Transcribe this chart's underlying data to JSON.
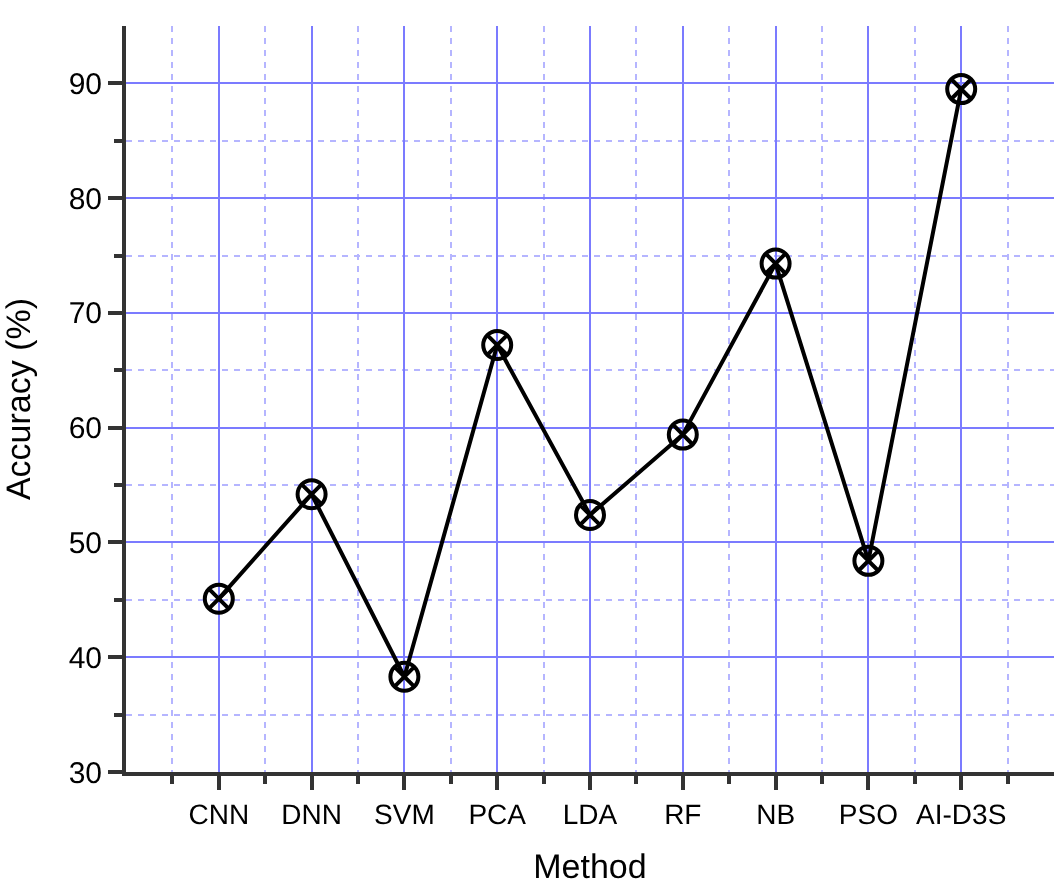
{
  "chart_data": {
    "type": "line",
    "xlabel": "Method",
    "ylabel": "Accuracy (%)",
    "categories": [
      "CNN",
      "DNN",
      "SVM",
      "PCA",
      "LDA",
      "RF",
      "NB",
      "PSO",
      "AI-D3S"
    ],
    "series": [
      {
        "color": "#000000",
        "values": [
          45.1,
          54.2,
          38.3,
          67.2,
          52.4,
          59.4,
          74.3,
          48.4,
          89.5
        ]
      }
    ],
    "ylim": [
      30,
      95
    ],
    "yticks": [
      30,
      {
        "value": 35,
        "label": null
      },
      40,
      {
        "value": 45,
        "label": null
      },
      50,
      {
        "value": 55,
        "label": null
      },
      60,
      {
        "value": 65,
        "label": null
      },
      70,
      {
        "value": 75,
        "label": null
      },
      80,
      {
        "value": 85,
        "label": null
      },
      90
    ],
    "grid": true,
    "marker": "cross",
    "line_style": "solid",
    "legend": false
  }
}
